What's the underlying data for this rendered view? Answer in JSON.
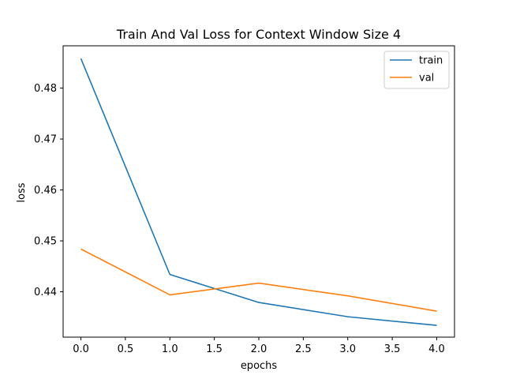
{
  "chart_data": {
    "type": "line",
    "title": "Train And Val Loss for Context Window Size 4",
    "xlabel": "epochs",
    "ylabel": "loss",
    "x": [
      0,
      1,
      2,
      3,
      4
    ],
    "xlim": [
      -0.2,
      4.2
    ],
    "ylim": [
      0.43109,
      0.48831
    ],
    "xticks": [
      0.0,
      0.5,
      1.0,
      1.5,
      2.0,
      2.5,
      3.0,
      3.5,
      4.0
    ],
    "xtick_labels": [
      "0.0",
      "0.5",
      "1.0",
      "1.5",
      "2.0",
      "2.5",
      "3.0",
      "3.5",
      "4.0"
    ],
    "yticks": [
      0.44,
      0.45,
      0.46,
      0.47,
      0.48
    ],
    "ytick_labels": [
      "0.44",
      "0.45",
      "0.46",
      "0.47",
      "0.48"
    ],
    "grid": false,
    "legend_position": "top-right",
    "series": [
      {
        "name": "train",
        "color": "#1f77b4",
        "values": [
          0.4858,
          0.4434,
          0.4379,
          0.4351,
          0.4334
        ]
      },
      {
        "name": "val",
        "color": "#ff7f0e",
        "values": [
          0.4484,
          0.4394,
          0.4417,
          0.4392,
          0.4362
        ]
      }
    ]
  }
}
